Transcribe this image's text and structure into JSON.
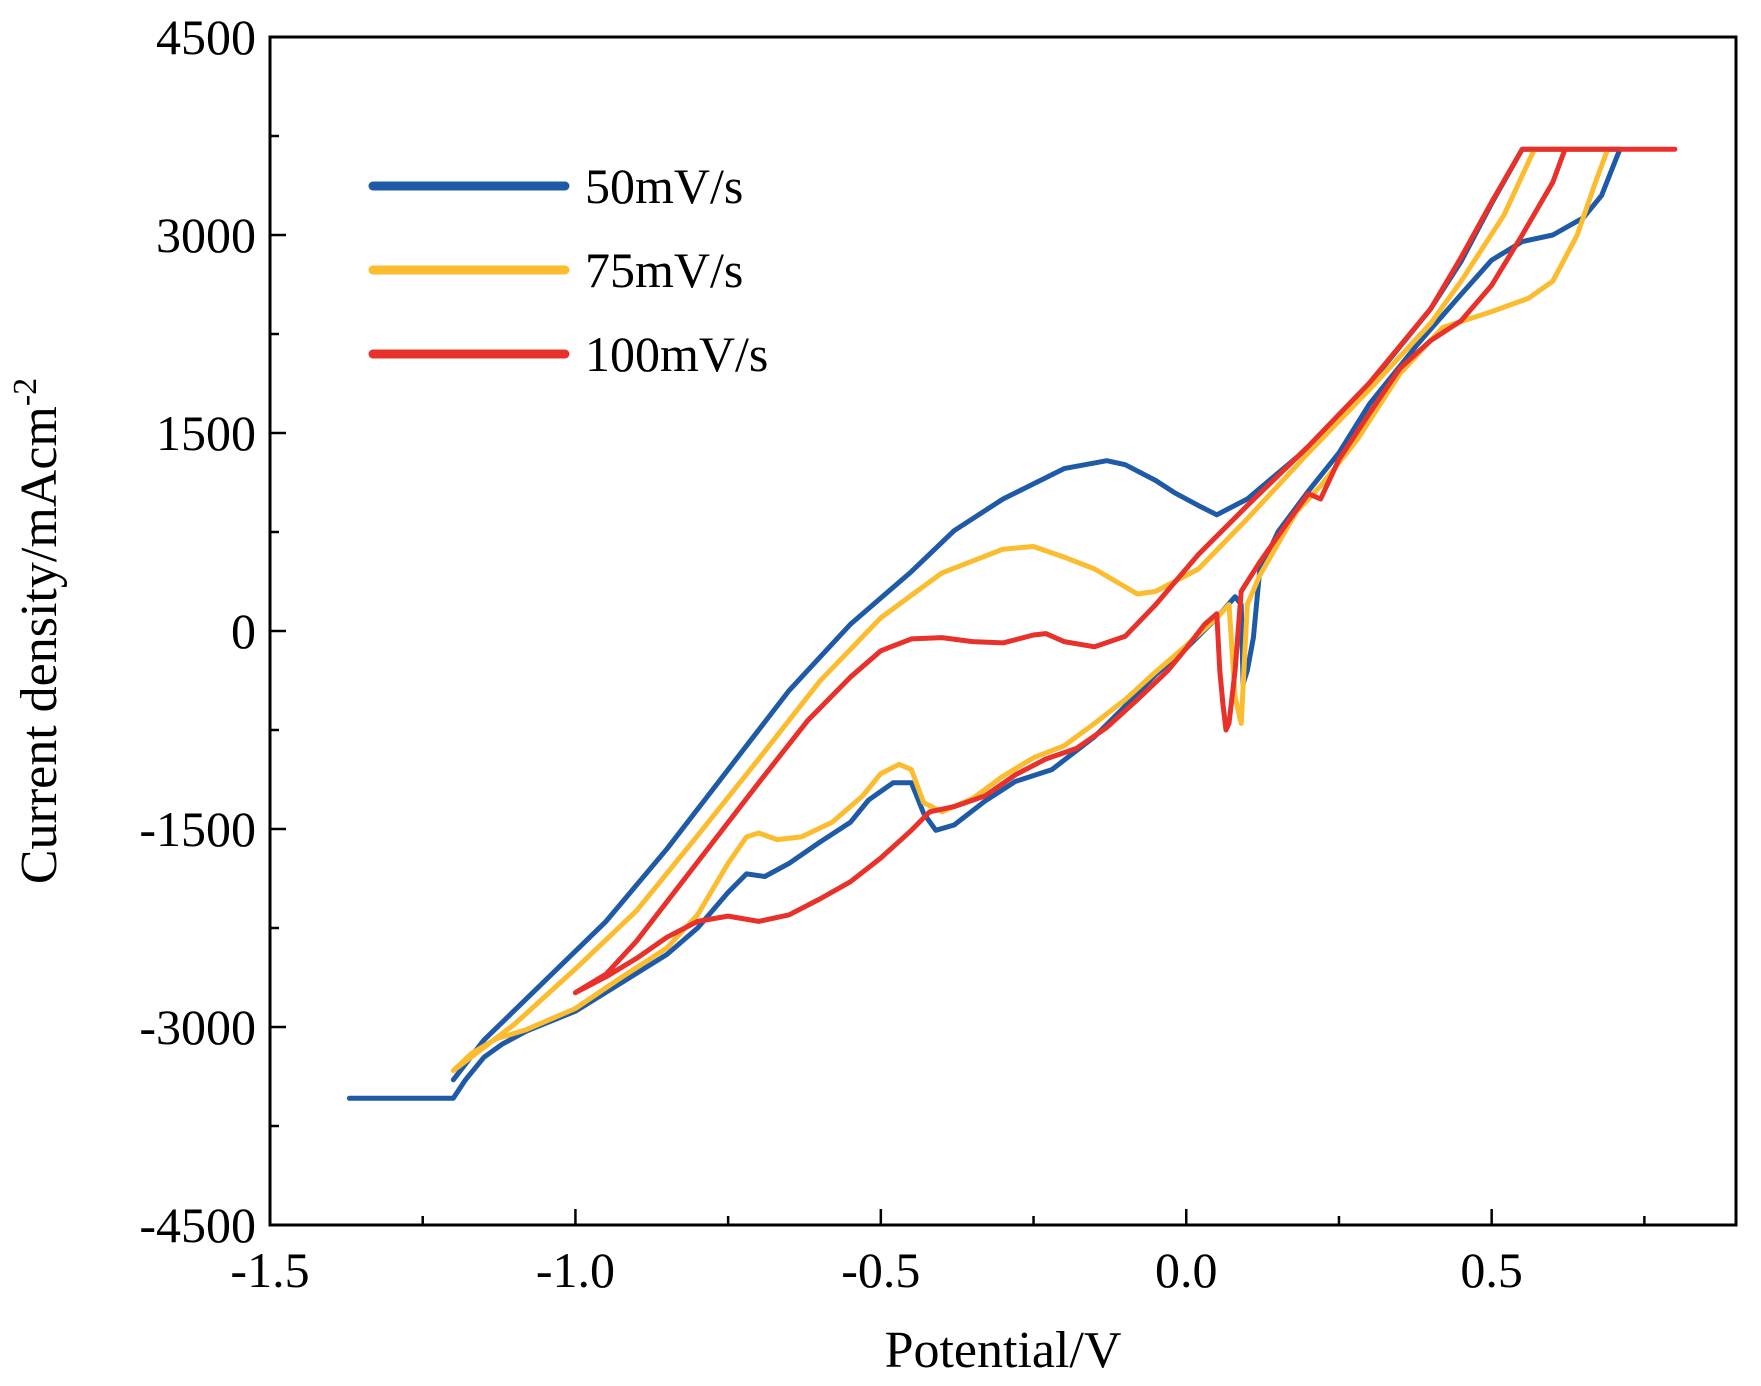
{
  "chart_data": {
    "type": "line",
    "title": "",
    "xlabel": "Potential/V",
    "ylabel": "Current density/mAcm",
    "ylabel_superscript": "-2",
    "xlim": [
      -1.5,
      0.9
    ],
    "ylim": [
      -4500,
      4500
    ],
    "x_ticks": [
      -1.5,
      -1.0,
      -0.5,
      0.0,
      0.5
    ],
    "x_tick_labels": [
      "-1.5",
      "-1.0",
      "-0.5",
      "0.0",
      "0.5"
    ],
    "x_minor_ticks": [
      -1.25,
      -0.75,
      -0.25,
      0.25,
      0.75
    ],
    "y_ticks": [
      -4500,
      -3000,
      -1500,
      0,
      1500,
      3000,
      4500
    ],
    "y_tick_labels": [
      "-4500",
      "-3000",
      "-1500",
      "0",
      "1500",
      "3000",
      "4500"
    ],
    "y_minor_ticks": [
      -3750,
      -2250,
      -750,
      750,
      2250,
      3750
    ],
    "grid": false,
    "legend_position": "top-left",
    "series": [
      {
        "name": "50mV/s",
        "color": "#1f5aa6",
        "points": [
          [
            -1.37,
            -3540
          ],
          [
            -1.2,
            -3540
          ],
          [
            -1.18,
            -3400
          ],
          [
            -1.15,
            -3230
          ],
          [
            -1.12,
            -3130
          ],
          [
            -1.08,
            -3030
          ],
          [
            -1.0,
            -2880
          ],
          [
            -0.93,
            -2680
          ],
          [
            -0.85,
            -2450
          ],
          [
            -0.8,
            -2250
          ],
          [
            -0.75,
            -1980
          ],
          [
            -0.72,
            -1840
          ],
          [
            -0.69,
            -1860
          ],
          [
            -0.65,
            -1760
          ],
          [
            -0.6,
            -1600
          ],
          [
            -0.55,
            -1450
          ],
          [
            -0.52,
            -1280
          ],
          [
            -0.48,
            -1150
          ],
          [
            -0.45,
            -1150
          ],
          [
            -0.43,
            -1380
          ],
          [
            -0.41,
            -1510
          ],
          [
            -0.38,
            -1470
          ],
          [
            -0.33,
            -1290
          ],
          [
            -0.28,
            -1140
          ],
          [
            -0.22,
            -1050
          ],
          [
            -0.15,
            -800
          ],
          [
            -0.1,
            -570
          ],
          [
            -0.05,
            -330
          ],
          [
            0.0,
            -130
          ],
          [
            0.05,
            100
          ],
          [
            0.08,
            260
          ],
          [
            0.09,
            200
          ],
          [
            0.093,
            -400
          ],
          [
            0.1,
            -300
          ],
          [
            0.11,
            -50
          ],
          [
            0.12,
            450
          ],
          [
            0.15,
            750
          ],
          [
            0.2,
            1060
          ],
          [
            0.25,
            1350
          ],
          [
            0.3,
            1720
          ],
          [
            0.38,
            2180
          ],
          [
            0.45,
            2550
          ],
          [
            0.5,
            2810
          ],
          [
            0.55,
            2950
          ],
          [
            0.6,
            3000
          ],
          [
            0.65,
            3130
          ],
          [
            0.68,
            3300
          ],
          [
            0.71,
            3650
          ],
          [
            0.71,
            3650
          ],
          [
            0.55,
            3650
          ],
          [
            0.5,
            3240
          ],
          [
            0.45,
            2800
          ],
          [
            0.4,
            2440
          ],
          [
            0.3,
            1870
          ],
          [
            0.2,
            1390
          ],
          [
            0.1,
            1000
          ],
          [
            0.05,
            880
          ],
          [
            0.02,
            950
          ],
          [
            -0.02,
            1050
          ],
          [
            -0.05,
            1140
          ],
          [
            -0.1,
            1260
          ],
          [
            -0.13,
            1290
          ],
          [
            -0.2,
            1230
          ],
          [
            -0.3,
            1000
          ],
          [
            -0.38,
            760
          ],
          [
            -0.45,
            450
          ],
          [
            -0.55,
            50
          ],
          [
            -0.65,
            -450
          ],
          [
            -0.75,
            -1050
          ],
          [
            -0.85,
            -1650
          ],
          [
            -0.95,
            -2200
          ],
          [
            -1.05,
            -2650
          ],
          [
            -1.15,
            -3100
          ],
          [
            -1.2,
            -3400
          ]
        ]
      },
      {
        "name": "75mV/s",
        "color": "#fbbc2f",
        "points": [
          [
            -1.2,
            -3330
          ],
          [
            -1.17,
            -3200
          ],
          [
            -1.13,
            -3090
          ],
          [
            -1.08,
            -3020
          ],
          [
            -1.0,
            -2860
          ],
          [
            -0.93,
            -2640
          ],
          [
            -0.85,
            -2400
          ],
          [
            -0.8,
            -2150
          ],
          [
            -0.75,
            -1760
          ],
          [
            -0.72,
            -1560
          ],
          [
            -0.7,
            -1530
          ],
          [
            -0.67,
            -1580
          ],
          [
            -0.63,
            -1560
          ],
          [
            -0.58,
            -1450
          ],
          [
            -0.53,
            -1250
          ],
          [
            -0.5,
            -1080
          ],
          [
            -0.47,
            -1010
          ],
          [
            -0.45,
            -1050
          ],
          [
            -0.43,
            -1300
          ],
          [
            -0.4,
            -1370
          ],
          [
            -0.35,
            -1270
          ],
          [
            -0.3,
            -1100
          ],
          [
            -0.25,
            -960
          ],
          [
            -0.2,
            -870
          ],
          [
            -0.15,
            -700
          ],
          [
            -0.1,
            -520
          ],
          [
            -0.05,
            -310
          ],
          [
            0.0,
            -110
          ],
          [
            0.05,
            100
          ],
          [
            0.07,
            200
          ],
          [
            0.08,
            -500
          ],
          [
            0.09,
            -700
          ],
          [
            0.1,
            200
          ],
          [
            0.12,
            420
          ],
          [
            0.18,
            900
          ],
          [
            0.22,
            1100
          ],
          [
            0.28,
            1450
          ],
          [
            0.35,
            1950
          ],
          [
            0.42,
            2300
          ],
          [
            0.5,
            2420
          ],
          [
            0.56,
            2520
          ],
          [
            0.6,
            2650
          ],
          [
            0.64,
            3000
          ],
          [
            0.67,
            3400
          ],
          [
            0.69,
            3650
          ],
          [
            0.69,
            3650
          ],
          [
            0.57,
            3650
          ],
          [
            0.52,
            3150
          ],
          [
            0.45,
            2650
          ],
          [
            0.4,
            2330
          ],
          [
            0.3,
            1830
          ],
          [
            0.2,
            1350
          ],
          [
            0.1,
            850
          ],
          [
            0.02,
            470
          ],
          [
            -0.05,
            300
          ],
          [
            -0.08,
            280
          ],
          [
            -0.15,
            470
          ],
          [
            -0.2,
            560
          ],
          [
            -0.25,
            640
          ],
          [
            -0.3,
            620
          ],
          [
            -0.4,
            440
          ],
          [
            -0.5,
            100
          ],
          [
            -0.6,
            -380
          ],
          [
            -0.7,
            -970
          ],
          [
            -0.8,
            -1550
          ],
          [
            -0.9,
            -2120
          ],
          [
            -1.0,
            -2560
          ],
          [
            -1.1,
            -2980
          ],
          [
            -1.2,
            -3330
          ]
        ]
      },
      {
        "name": "100mV/s",
        "color": "#e8312a",
        "points": [
          [
            -1.0,
            -2740
          ],
          [
            -0.95,
            -2620
          ],
          [
            -0.9,
            -2480
          ],
          [
            -0.85,
            -2320
          ],
          [
            -0.8,
            -2200
          ],
          [
            -0.75,
            -2160
          ],
          [
            -0.7,
            -2200
          ],
          [
            -0.65,
            -2150
          ],
          [
            -0.6,
            -2030
          ],
          [
            -0.55,
            -1900
          ],
          [
            -0.5,
            -1720
          ],
          [
            -0.45,
            -1510
          ],
          [
            -0.42,
            -1370
          ],
          [
            -0.38,
            -1330
          ],
          [
            -0.33,
            -1250
          ],
          [
            -0.28,
            -1090
          ],
          [
            -0.23,
            -970
          ],
          [
            -0.18,
            -890
          ],
          [
            -0.13,
            -730
          ],
          [
            -0.08,
            -520
          ],
          [
            -0.03,
            -300
          ],
          [
            0.0,
            -130
          ],
          [
            0.03,
            50
          ],
          [
            0.05,
            130
          ],
          [
            0.055,
            -300
          ],
          [
            0.06,
            -550
          ],
          [
            0.065,
            -750
          ],
          [
            0.07,
            -700
          ],
          [
            0.08,
            -300
          ],
          [
            0.09,
            300
          ],
          [
            0.12,
            520
          ],
          [
            0.17,
            850
          ],
          [
            0.2,
            1040
          ],
          [
            0.22,
            1000
          ],
          [
            0.25,
            1300
          ],
          [
            0.3,
            1650
          ],
          [
            0.35,
            1990
          ],
          [
            0.4,
            2200
          ],
          [
            0.45,
            2350
          ],
          [
            0.5,
            2620
          ],
          [
            0.55,
            3000
          ],
          [
            0.6,
            3400
          ],
          [
            0.62,
            3650
          ],
          [
            0.62,
            3650
          ],
          [
            0.8,
            3650
          ],
          [
            0.8,
            3650
          ],
          [
            0.55,
            3650
          ],
          [
            0.5,
            3250
          ],
          [
            0.45,
            2830
          ],
          [
            0.4,
            2440
          ],
          [
            0.3,
            1880
          ],
          [
            0.2,
            1400
          ],
          [
            0.1,
            950
          ],
          [
            0.02,
            580
          ],
          [
            -0.05,
            200
          ],
          [
            -0.1,
            -40
          ],
          [
            -0.15,
            -120
          ],
          [
            -0.2,
            -80
          ],
          [
            -0.23,
            -20
          ],
          [
            -0.25,
            -30
          ],
          [
            -0.3,
            -90
          ],
          [
            -0.35,
            -80
          ],
          [
            -0.4,
            -50
          ],
          [
            -0.45,
            -60
          ],
          [
            -0.5,
            -150
          ],
          [
            -0.55,
            -350
          ],
          [
            -0.62,
            -680
          ],
          [
            -0.7,
            -1150
          ],
          [
            -0.8,
            -1750
          ],
          [
            -0.9,
            -2350
          ],
          [
            -0.95,
            -2600
          ],
          [
            -1.0,
            -2740
          ]
        ]
      }
    ]
  }
}
